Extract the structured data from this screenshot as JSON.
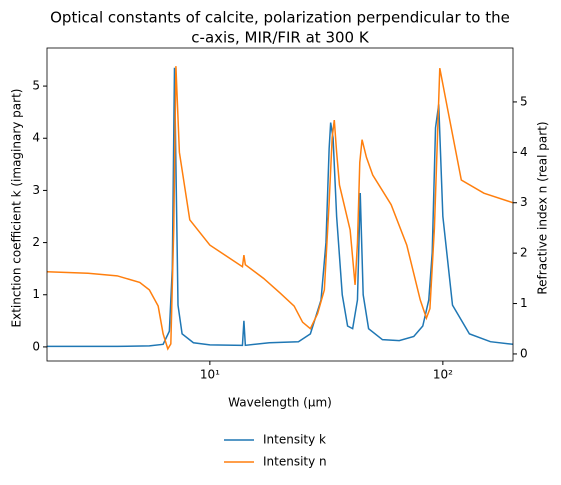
{
  "chart_data": {
    "type": "line",
    "title": [
      "Optical constants of calcite, polarization perpendicular to the",
      "c-axis, MIR/FIR at 300 K"
    ],
    "x_label": "Wavelength (μm)",
    "y_label": "Extinction coefficient k (imaginary part)",
    "y2_label": "Refractive index n (real part)",
    "xscale": "log",
    "xlim": [
      2,
      200
    ],
    "xticks": [
      {
        "value": 10,
        "label": "10¹"
      },
      {
        "value": 100,
        "label": "10²"
      }
    ],
    "ylim": [
      -0.27,
      5.73
    ],
    "yticks": [
      0,
      1,
      2,
      3,
      4,
      5
    ],
    "y2lim": [
      -0.14,
      6.07
    ],
    "y2ticks": [
      0,
      1,
      2,
      3,
      4,
      5
    ],
    "legend": "below",
    "series": [
      {
        "name": "Intensity k",
        "color": "#1f77b4",
        "axis": "y",
        "x": [
          2,
          4,
          5.5,
          6.3,
          6.7,
          6.9,
          7.05,
          7.15,
          7.3,
          7.6,
          8.5,
          10,
          13.8,
          14.0,
          14.2,
          18,
          24,
          27,
          30,
          31.5,
          32.5,
          33,
          33.8,
          35,
          37,
          39,
          41,
          43,
          44.2,
          45.5,
          48,
          55,
          65,
          75,
          82,
          87,
          90,
          93,
          96,
          100,
          110,
          130,
          160,
          200
        ],
        "values": [
          0.01,
          0.01,
          0.02,
          0.05,
          0.3,
          1.5,
          5.35,
          3.5,
          0.8,
          0.25,
          0.08,
          0.04,
          0.03,
          0.5,
          0.03,
          0.08,
          0.1,
          0.25,
          0.9,
          2.0,
          3.8,
          4.3,
          4.0,
          2.5,
          1.0,
          0.4,
          0.35,
          0.9,
          2.95,
          1.0,
          0.35,
          0.14,
          0.12,
          0.2,
          0.4,
          0.9,
          1.8,
          4.2,
          4.65,
          2.5,
          0.8,
          0.25,
          0.1,
          0.05
        ]
      },
      {
        "name": "Intensity n",
        "color": "#ff7f0e",
        "axis": "y2",
        "x": [
          2,
          3,
          4,
          5,
          5.5,
          6,
          6.3,
          6.6,
          6.8,
          7.0,
          7.15,
          7.4,
          8.2,
          10,
          13.8,
          14.0,
          14.2,
          17,
          20,
          23,
          25,
          27,
          29,
          31,
          32.5,
          33.5,
          34.2,
          35,
          36,
          40,
          42,
          43,
          44,
          45,
          47,
          50,
          60,
          70,
          80,
          85,
          88,
          92,
          97,
          105,
          120,
          150,
          200
        ],
        "values": [
          1.63,
          1.6,
          1.55,
          1.42,
          1.27,
          0.95,
          0.4,
          0.1,
          0.2,
          2.5,
          5.71,
          4.0,
          2.66,
          2.16,
          1.73,
          1.96,
          1.77,
          1.5,
          1.21,
          0.95,
          0.63,
          0.5,
          0.8,
          1.27,
          3.0,
          4.3,
          4.64,
          4.0,
          3.35,
          2.46,
          1.37,
          2.2,
          3.8,
          4.25,
          3.9,
          3.55,
          2.96,
          2.16,
          1.07,
          0.71,
          0.9,
          2.5,
          5.67,
          4.84,
          3.45,
          3.19,
          3.0
        ]
      }
    ]
  }
}
